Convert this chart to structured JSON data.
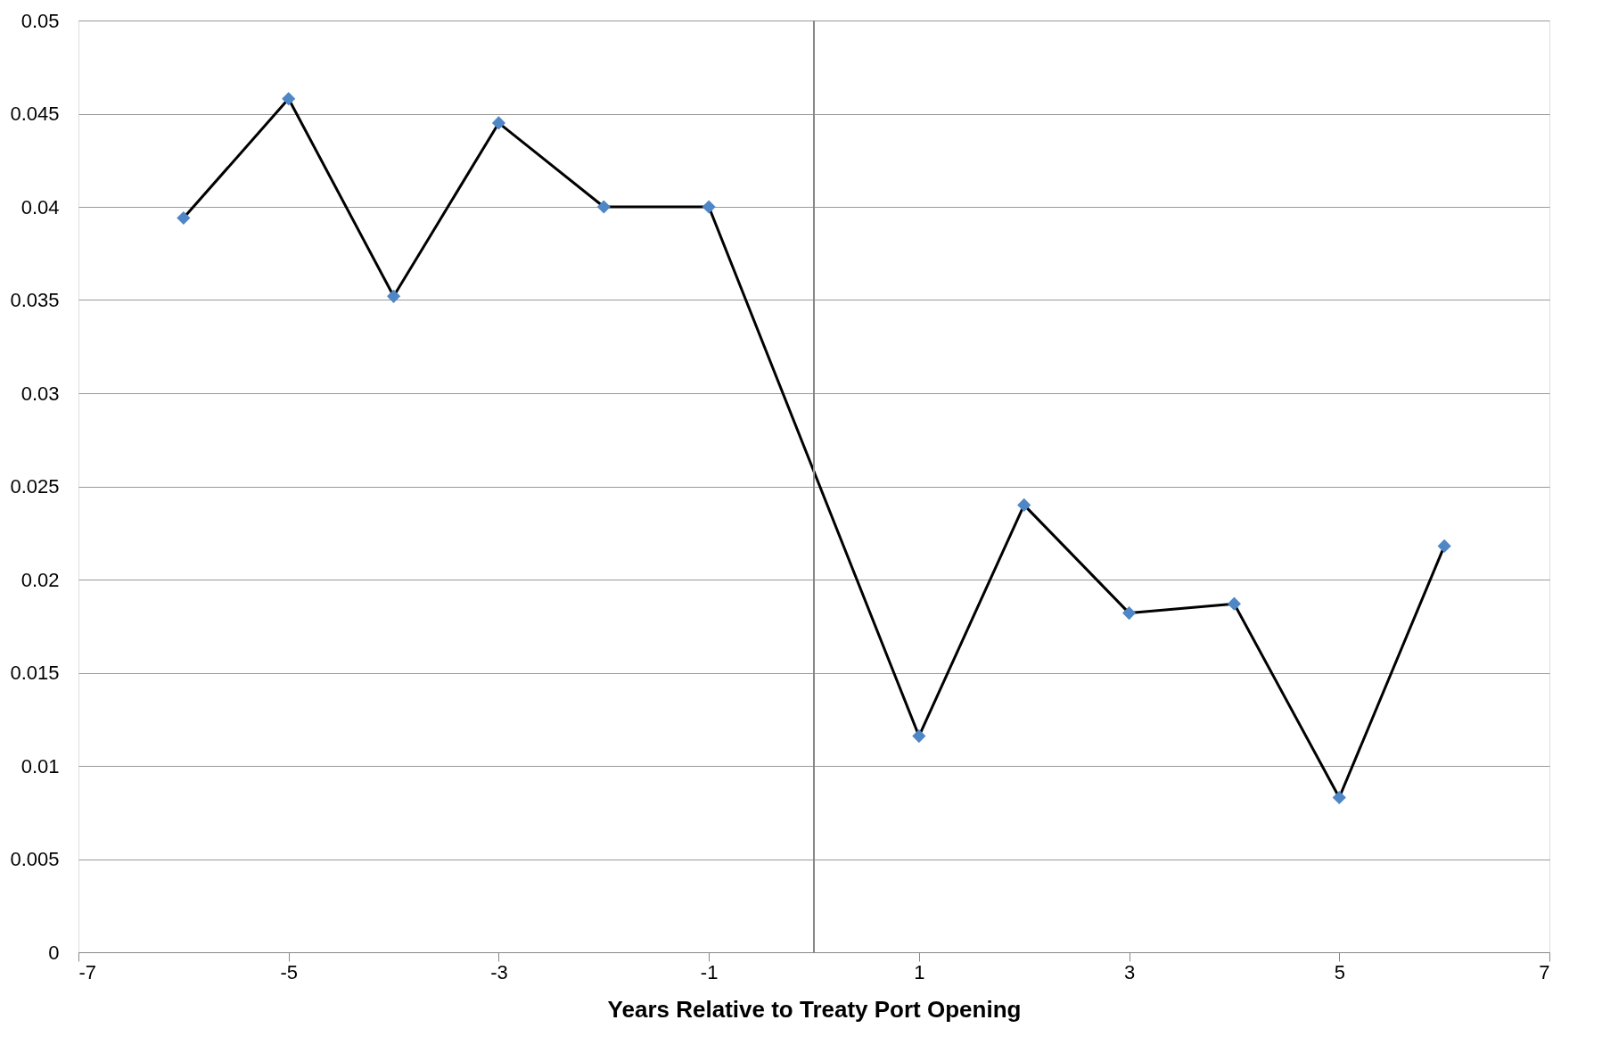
{
  "chart_data": {
    "type": "line",
    "xlabel": "Years Relative to Treaty Port Opening",
    "x": [
      -6,
      -5,
      -4,
      -3,
      -2,
      -1,
      1,
      2,
      3,
      4,
      5,
      6
    ],
    "series": [
      {
        "color": "#4f86c6",
        "values": [
          0.0394,
          0.0458,
          0.0352,
          0.0445,
          0.04,
          0.04,
          0.0116,
          0.024,
          0.0182,
          0.0187,
          0.0083,
          0.0218
        ]
      }
    ],
    "marker": "diamond",
    "line_style": "solid",
    "xlim": [
      -7,
      7
    ],
    "xticks": [
      -7,
      -5,
      -3,
      -1,
      1,
      3,
      5,
      7
    ],
    "ylim": [
      0,
      0.05
    ],
    "yticks": [
      0,
      0.005,
      0.01,
      0.015,
      0.02,
      0.025,
      0.03,
      0.035,
      0.04,
      0.045,
      0.05
    ],
    "ref_lines": [
      {
        "axis": "x",
        "value": 0,
        "color": "#888888"
      }
    ],
    "grid": "y"
  }
}
